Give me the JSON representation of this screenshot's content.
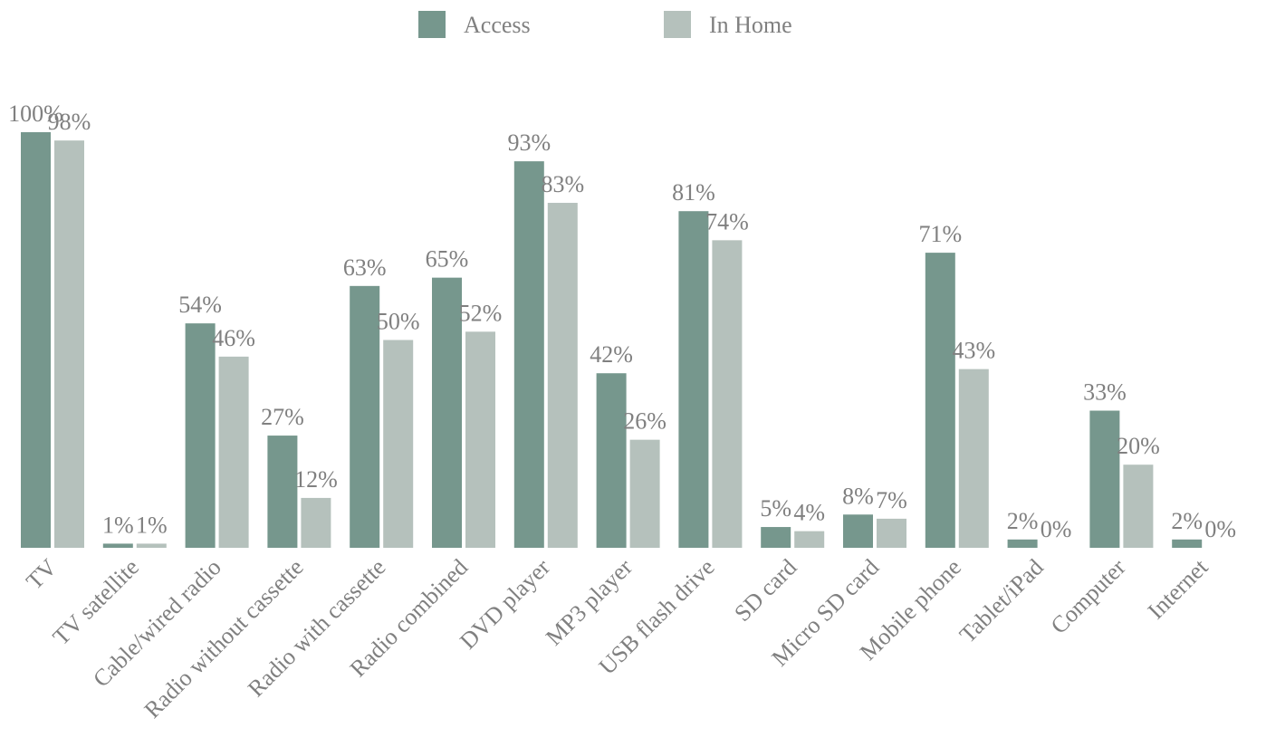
{
  "chart_data": {
    "type": "bar",
    "categories": [
      "TV",
      "TV satellite",
      "Cable/wired radio",
      "Radio without cassette",
      "Radio with cassette",
      "Radio combined",
      "DVD player",
      "MP3 player",
      "USB flash drive",
      "SD card",
      "Micro SD card",
      "Mobile phone",
      "Tablet/iPad",
      "Computer",
      "Internet"
    ],
    "series": [
      {
        "name": "Access",
        "color": "#76978d",
        "values": [
          100,
          1,
          54,
          27,
          63,
          65,
          93,
          42,
          81,
          5,
          8,
          71,
          2,
          33,
          2
        ],
        "value_labels": [
          "100%",
          "1%",
          "54%",
          "27%",
          "63%",
          "65%",
          "93%",
          "42%",
          "81%",
          "5%",
          "8%",
          "71%",
          "2%",
          "33%",
          "2%"
        ]
      },
      {
        "name": "In Home",
        "color": "#b5c1bc",
        "values": [
          98,
          1,
          46,
          12,
          50,
          52,
          83,
          26,
          74,
          4,
          7,
          43,
          0,
          20,
          0
        ],
        "value_labels": [
          "98%",
          "1%",
          "46%",
          "12%",
          "50%",
          "52%",
          "83%",
          "26%",
          "74%",
          "4%",
          "7%",
          "43%",
          "0%",
          "20%",
          "0%"
        ]
      }
    ],
    "legend": "top"
  }
}
